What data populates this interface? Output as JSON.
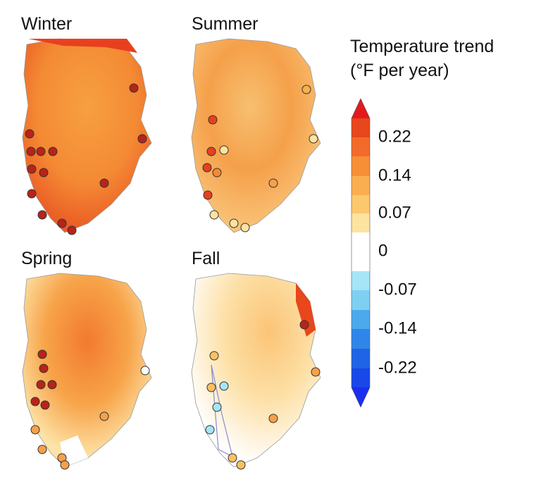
{
  "panels": [
    {
      "title": "Winter"
    },
    {
      "title": "Summer"
    },
    {
      "title": "Spring"
    },
    {
      "title": "Fall"
    }
  ],
  "legend": {
    "title": [
      "Temperature trend",
      "(°F per year)"
    ],
    "ticks": [
      0.22,
      0.14,
      0.07,
      0,
      -0.07,
      -0.14,
      -0.22
    ]
  }
}
